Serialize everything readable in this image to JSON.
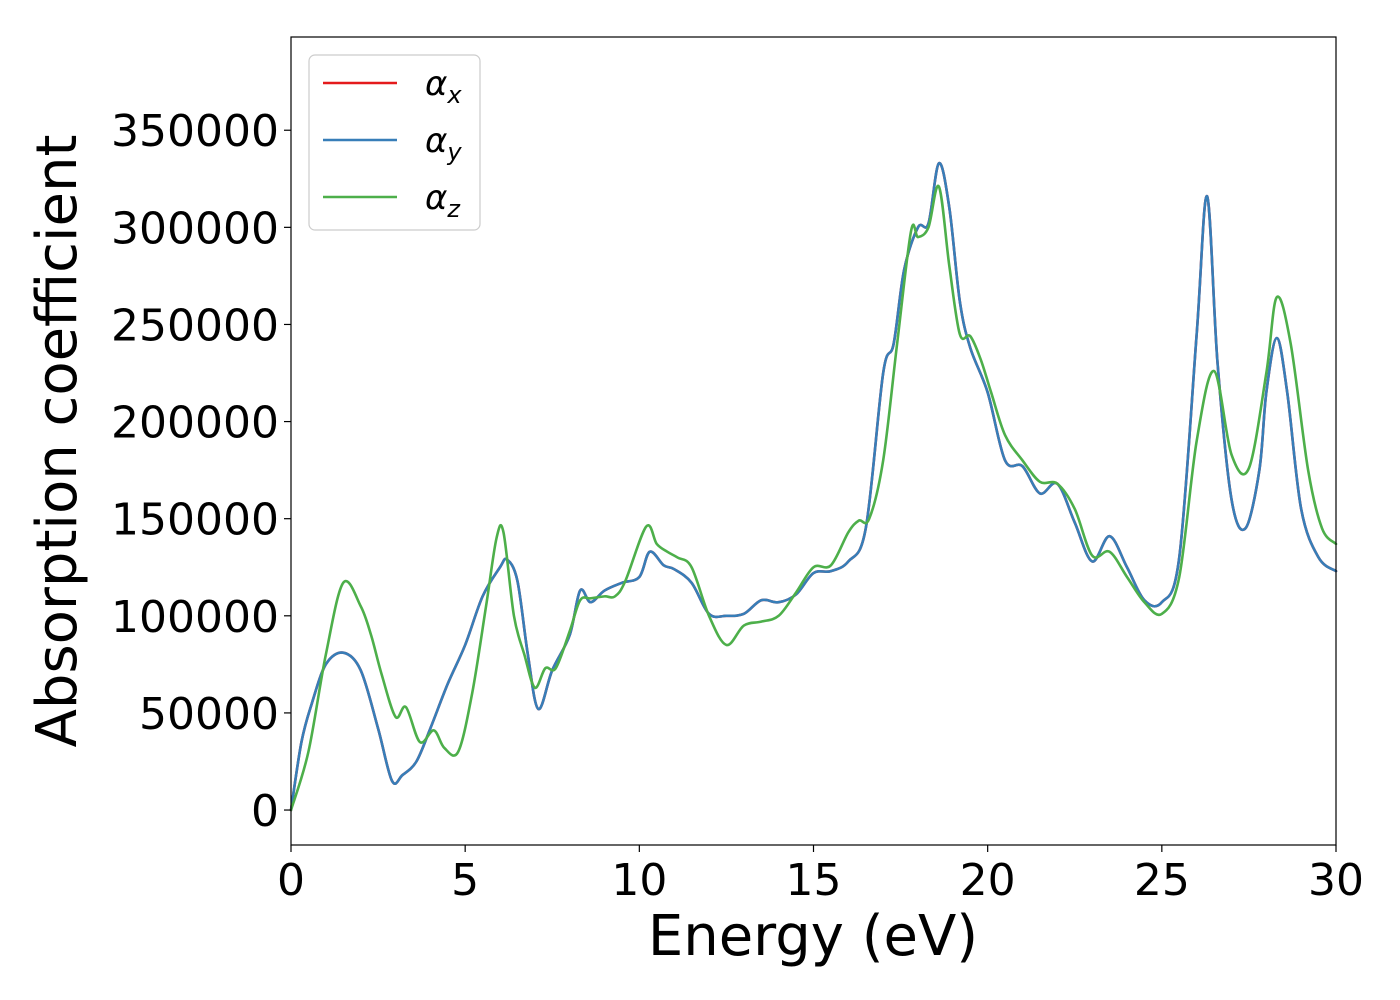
{
  "chart_data": {
    "type": "line",
    "title": "",
    "xlabel": "Energy (eV)",
    "ylabel": "Absorption coefficient",
    "xlim": [
      0,
      30
    ],
    "ylim": [
      -18000,
      398000
    ],
    "xticks": [
      0,
      5,
      10,
      15,
      20,
      25,
      30
    ],
    "yticks": [
      0,
      50000,
      100000,
      150000,
      200000,
      250000,
      300000,
      350000
    ],
    "grid": false,
    "legend_position": "top-left",
    "series": [
      {
        "name": "αx",
        "color": "#e41a1c",
        "x": [
          0,
          0.3,
          0.6,
          1.0,
          1.5,
          2.0,
          2.5,
          2.9,
          3.2,
          3.6,
          4.0,
          4.5,
          5.0,
          5.5,
          6.0,
          6.2,
          6.5,
          6.8,
          7.1,
          7.5,
          8.0,
          8.3,
          8.6,
          9.0,
          9.5,
          10.0,
          10.3,
          10.7,
          11.0,
          11.5,
          12.0,
          12.5,
          13.0,
          13.5,
          14.0,
          14.5,
          15.0,
          15.5,
          16.0,
          16.5,
          17.0,
          17.3,
          17.6,
          18.0,
          18.3,
          18.6,
          18.9,
          19.2,
          19.5,
          20.0,
          20.5,
          21.0,
          21.5,
          22.0,
          22.5,
          23.0,
          23.5,
          24.0,
          24.5,
          25.0,
          25.5,
          26.0,
          26.3,
          26.6,
          27.0,
          27.4,
          27.8,
          28.0,
          28.3,
          28.6,
          29.0,
          29.5,
          30.0
        ],
        "y": [
          0,
          35000,
          55000,
          75000,
          81000,
          72000,
          42000,
          15000,
          18000,
          25000,
          42000,
          65000,
          85000,
          110000,
          125000,
          129000,
          118000,
          80000,
          52000,
          72000,
          90000,
          113000,
          107000,
          113000,
          117000,
          120000,
          133000,
          126000,
          124000,
          117000,
          101000,
          100000,
          101000,
          108000,
          107000,
          111000,
          122000,
          123000,
          128000,
          145000,
          225000,
          240000,
          278000,
          300000,
          302000,
          333000,
          310000,
          262000,
          238000,
          215000,
          180000,
          177000,
          163000,
          168000,
          148000,
          128000,
          141000,
          125000,
          108000,
          107000,
          130000,
          245000,
          316000,
          230000,
          160000,
          145000,
          175000,
          215000,
          243000,
          215000,
          155000,
          130000,
          123000
        ]
      },
      {
        "name": "αy",
        "color": "#377eb8",
        "x": [
          0,
          0.3,
          0.6,
          1.0,
          1.5,
          2.0,
          2.5,
          2.9,
          3.2,
          3.6,
          4.0,
          4.5,
          5.0,
          5.5,
          6.0,
          6.2,
          6.5,
          6.8,
          7.1,
          7.5,
          8.0,
          8.3,
          8.6,
          9.0,
          9.5,
          10.0,
          10.3,
          10.7,
          11.0,
          11.5,
          12.0,
          12.5,
          13.0,
          13.5,
          14.0,
          14.5,
          15.0,
          15.5,
          16.0,
          16.5,
          17.0,
          17.3,
          17.6,
          18.0,
          18.3,
          18.6,
          18.9,
          19.2,
          19.5,
          20.0,
          20.5,
          21.0,
          21.5,
          22.0,
          22.5,
          23.0,
          23.5,
          24.0,
          24.5,
          25.0,
          25.5,
          26.0,
          26.3,
          26.6,
          27.0,
          27.4,
          27.8,
          28.0,
          28.3,
          28.6,
          29.0,
          29.5,
          30.0
        ],
        "y": [
          0,
          35000,
          55000,
          75000,
          81000,
          72000,
          42000,
          15000,
          18000,
          25000,
          42000,
          65000,
          85000,
          110000,
          125000,
          129000,
          118000,
          80000,
          52000,
          72000,
          90000,
          113000,
          107000,
          113000,
          117000,
          120000,
          133000,
          126000,
          124000,
          117000,
          101000,
          100000,
          101000,
          108000,
          107000,
          111000,
          122000,
          123000,
          128000,
          145000,
          225000,
          240000,
          278000,
          300000,
          302000,
          333000,
          310000,
          262000,
          238000,
          215000,
          180000,
          177000,
          163000,
          168000,
          148000,
          128000,
          141000,
          125000,
          108000,
          107000,
          130000,
          245000,
          316000,
          230000,
          160000,
          145000,
          175000,
          215000,
          243000,
          215000,
          155000,
          130000,
          123000
        ]
      },
      {
        "name": "αz",
        "color": "#4daf4a",
        "x": [
          0,
          0.5,
          1.0,
          1.5,
          2.0,
          2.3,
          2.6,
          3.0,
          3.3,
          3.7,
          4.1,
          4.4,
          4.8,
          5.2,
          5.6,
          5.9,
          6.1,
          6.4,
          6.7,
          7.0,
          7.3,
          7.6,
          8.0,
          8.3,
          8.6,
          9.0,
          9.3,
          9.6,
          10.2,
          10.5,
          10.8,
          11.1,
          11.5,
          12.0,
          12.5,
          13.0,
          13.5,
          14.0,
          14.5,
          15.0,
          15.5,
          16.0,
          16.3,
          16.6,
          17.0,
          17.4,
          17.8,
          18.0,
          18.3,
          18.6,
          18.9,
          19.2,
          19.5,
          19.8,
          20.1,
          20.5,
          21.0,
          21.5,
          22.0,
          22.5,
          23.0,
          23.5,
          24.0,
          24.5,
          25.0,
          25.5,
          26.0,
          26.5,
          27.0,
          27.5,
          28.0,
          28.3,
          28.7,
          29.2,
          29.6,
          30.0
        ],
        "y": [
          0,
          30000,
          80000,
          117000,
          105000,
          90000,
          70000,
          48000,
          53000,
          35000,
          41000,
          32000,
          30000,
          60000,
          105000,
          140000,
          143000,
          100000,
          80000,
          63000,
          73000,
          73000,
          92000,
          108000,
          109000,
          110000,
          110000,
          118000,
          146000,
          137000,
          133000,
          130000,
          125000,
          100000,
          85000,
          95000,
          97000,
          100000,
          112000,
          125000,
          126000,
          143000,
          149000,
          150000,
          180000,
          240000,
          298000,
          295000,
          300000,
          321000,
          280000,
          245000,
          244000,
          232000,
          215000,
          193000,
          180000,
          169000,
          168000,
          155000,
          131000,
          133000,
          120000,
          107000,
          101000,
          120000,
          190000,
          226000,
          183000,
          176000,
          225000,
          264000,
          240000,
          175000,
          145000,
          137000
        ]
      }
    ]
  }
}
